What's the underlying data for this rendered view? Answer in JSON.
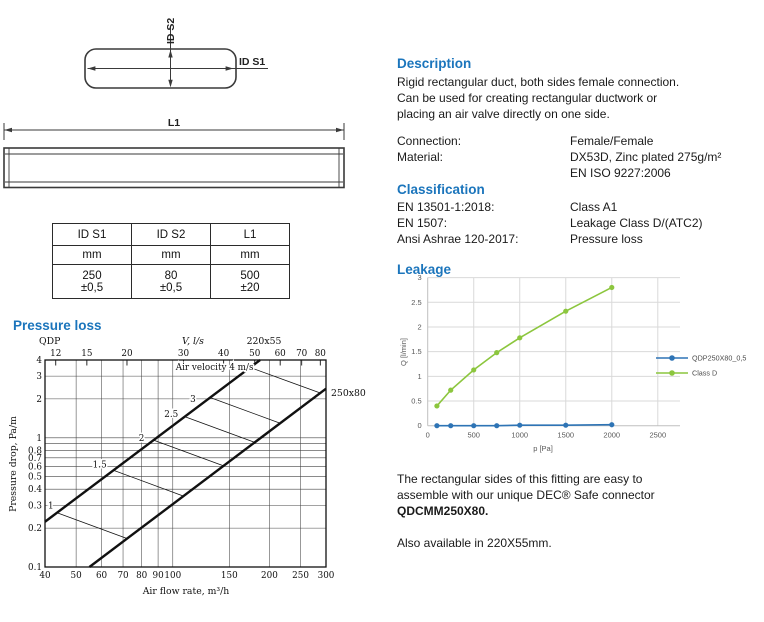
{
  "colors": {
    "heading_blue": "#1B75BC",
    "body_text": "#1a1a1a",
    "chart_blue": "#2E74B5",
    "chart_green": "#8CC63E",
    "axis_gray": "#595959",
    "grid_gray": "#D9D9D9",
    "axis_line_gray": "#BFBFBF",
    "drawing_line": "#3a3a3a"
  },
  "drawing": {
    "id_s2_label": "ID S2",
    "id_s1_label": "ID S1",
    "l1_label": "L1"
  },
  "dimension_table": {
    "headers": [
      "ID S1",
      "ID S2",
      "L1"
    ],
    "units": [
      "mm",
      "mm",
      "mm"
    ],
    "values": [
      "250",
      "80",
      "500"
    ],
    "tolerances": [
      "±0,5",
      "±0,5",
      "±20"
    ]
  },
  "pressure_section": {
    "title": "Pressure loss"
  },
  "description": {
    "heading": "Description",
    "text": "Rigid rectangular duct, both sides female connection.\nCan be used for creating rectangular ductwork or\nplacing an air valve directly on one side.",
    "specs": [
      {
        "label": "Connection:",
        "value": "Female/Female"
      },
      {
        "label": "Material:",
        "value": "DX53D, Zinc plated 275g/m²\nEN ISO 9227:2006"
      }
    ]
  },
  "classification": {
    "heading": "Classification",
    "rows": [
      {
        "label": "EN 13501-1:2018:",
        "value": "Class A1"
      },
      {
        "label": "EN 1507:",
        "value": "Leakage Class D/(ATC2)"
      },
      {
        "label": "Ansi Ashrae 120-2017:",
        "value": "Pressure loss"
      }
    ]
  },
  "leakage_section": {
    "title": "Leakage"
  },
  "footer": {
    "line1": "The rectangular sides of this fitting are easy to",
    "line2": "assemble with our unique DEC® Safe connector",
    "line3_bold": "QDCMM250X80.",
    "also": "Also available in 220X55mm."
  },
  "chart_data": [
    {
      "type": "line",
      "name": "pressure-loss-nomogram",
      "title": "Pressure loss",
      "xscale": "log",
      "yscale": "log",
      "xlabel": "Air flow rate, m³/h",
      "ylabel": "Pressure drop, Pa/m",
      "top_axis_label": "V, l/s",
      "corner_labels": {
        "top_left": "QDP",
        "top_right": "220x55",
        "right_edge": "250x80"
      },
      "xlim": [
        40,
        300
      ],
      "ylim": [
        0.1,
        4
      ],
      "x_ticks": [
        40,
        50,
        60,
        70,
        80,
        90,
        100,
        150,
        200,
        250,
        300
      ],
      "y_ticks": [
        4,
        3,
        2,
        1,
        0.8,
        0.7,
        0.6,
        0.5,
        0.4,
        0.3,
        0.2,
        0.1
      ],
      "y_gridlines": [
        4,
        3,
        2,
        1,
        0.9,
        0.8,
        0.7,
        0.6,
        0.5,
        0.4,
        0.3,
        0.2,
        0.1
      ],
      "top_ticks_l_per_s": [
        12,
        15,
        20,
        30,
        40,
        50,
        60,
        70,
        80
      ],
      "l_per_s_to_m3h": 3.6,
      "duct_lines": [
        {
          "name": "220x55",
          "points": [
            [
              40,
              0.224
            ],
            [
              187,
              4
            ]
          ]
        },
        {
          "name": "250x80",
          "points": [
            [
              55,
              0.1
            ],
            [
              300,
              2.4
            ]
          ]
        }
      ],
      "velocity_lines": [
        {
          "v": "1",
          "from": [
            43.6,
            0.263
          ],
          "to": [
            72,
            0.166
          ],
          "label_at": [
            41.7,
            0.3
          ]
        },
        {
          "v": "1.5",
          "from": [
            65.3,
            0.561
          ],
          "to": [
            108,
            0.354
          ],
          "label_at": [
            59.2,
            0.62
          ]
        },
        {
          "v": "2",
          "from": [
            87.1,
            0.96
          ],
          "to": [
            144,
            0.606
          ],
          "label_at": [
            79.9,
            1.0
          ]
        },
        {
          "v": "2.5",
          "from": [
            108.9,
            1.458
          ],
          "to": [
            180,
            0.922
          ],
          "label_at": [
            98.9,
            1.53
          ]
        },
        {
          "v": "3",
          "from": [
            130.7,
            2.049
          ],
          "to": [
            216,
            1.296
          ],
          "label_at": [
            115.5,
            2.0
          ]
        },
        {
          "v": "4",
          "from": [
            174.2,
            3.5
          ],
          "to": [
            288,
            2.22
          ],
          "label_at": null
        }
      ],
      "annotation": "Air velocity 4 m/s",
      "annotation_at": [
        135,
        3.35
      ]
    },
    {
      "type": "line",
      "name": "leakage-chart",
      "title": "Leakage",
      "xlabel": "p [Pa]",
      "ylabel": "Q [l/min]",
      "xlim": [
        0,
        2500
      ],
      "ylim": [
        0,
        3
      ],
      "x_ticks": [
        0,
        500,
        1000,
        1500,
        2000,
        2500
      ],
      "y_ticks": [
        0,
        0.5,
        1,
        1.5,
        2,
        2.5,
        3
      ],
      "legend_position": "right",
      "series": [
        {
          "name": "QDP250X80_0,5",
          "color_key": "chart_blue",
          "x": [
            100,
            250,
            500,
            750,
            1000,
            1500,
            2000
          ],
          "y": [
            0,
            0,
            0,
            0,
            0.01,
            0.01,
            0.02
          ]
        },
        {
          "name": "Class D",
          "color_key": "chart_green",
          "x": [
            100,
            250,
            500,
            750,
            1000,
            1500,
            2000
          ],
          "y": [
            0.4,
            0.72,
            1.13,
            1.48,
            1.78,
            2.32,
            2.8
          ]
        }
      ]
    }
  ]
}
